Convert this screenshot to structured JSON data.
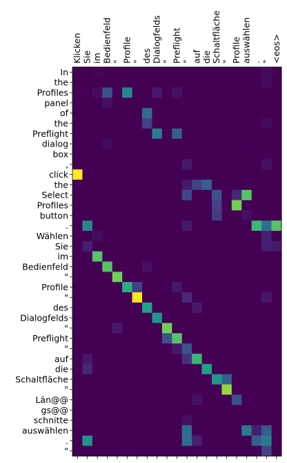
{
  "chart_data": {
    "type": "heatmap",
    "colormap": "viridis",
    "x_categories": [
      "Klicken",
      "Sie",
      "im",
      "Bedienfeld",
      "\"",
      "Profile",
      "\"",
      "des",
      "Dialogfelds",
      "\"",
      "Preflight",
      "\"",
      "auf",
      "die",
      "Schaltfläche",
      "\"",
      "Profile",
      "auswählen",
      ".",
      "\"",
      "<eos>"
    ],
    "y_categories": [
      "In",
      "the",
      "Profiles",
      "panel",
      "of",
      "the",
      "Preflight",
      "dialog",
      "box",
      ",",
      "click",
      "the",
      "Select",
      "Profiles",
      "button",
      ".",
      "Wählen",
      "Sie",
      "im",
      "Bedienfeld",
      "\"",
      "Profile",
      "\"",
      "des",
      "Dialogfelds",
      "\"",
      "Preflight",
      "\"",
      "auf",
      "die",
      "Schaltfläche",
      "\"",
      "Län@@",
      "gs@@",
      "schnitte",
      "auswählen",
      ".",
      "\""
    ],
    "values": [
      [
        0.02,
        0.02,
        0.03,
        0.02,
        0.02,
        0.02,
        0.02,
        0.02,
        0.02,
        0.02,
        0.02,
        0.02,
        0.02,
        0.02,
        0.02,
        0.02,
        0.02,
        0.02,
        0.02,
        0.04,
        0.02
      ],
      [
        0.02,
        0.02,
        0.02,
        0.02,
        0.02,
        0.02,
        0.02,
        0.02,
        0.02,
        0.02,
        0.02,
        0.02,
        0.02,
        0.02,
        0.02,
        0.02,
        0.02,
        0.02,
        0.02,
        0.04,
        0.02
      ],
      [
        0.02,
        0.02,
        0.05,
        0.25,
        0.02,
        0.45,
        0.02,
        0.02,
        0.08,
        0.02,
        0.06,
        0.02,
        0.02,
        0.02,
        0.02,
        0.02,
        0.02,
        0.02,
        0.02,
        0.02,
        0.02
      ],
      [
        0.02,
        0.02,
        0.02,
        0.06,
        0.02,
        0.02,
        0.02,
        0.02,
        0.02,
        0.02,
        0.02,
        0.02,
        0.02,
        0.02,
        0.02,
        0.02,
        0.02,
        0.02,
        0.02,
        0.02,
        0.02
      ],
      [
        0.02,
        0.02,
        0.02,
        0.02,
        0.02,
        0.02,
        0.02,
        0.35,
        0.02,
        0.02,
        0.02,
        0.02,
        0.02,
        0.02,
        0.02,
        0.02,
        0.02,
        0.02,
        0.02,
        0.02,
        0.02
      ],
      [
        0.02,
        0.02,
        0.02,
        0.02,
        0.02,
        0.02,
        0.02,
        0.2,
        0.02,
        0.02,
        0.02,
        0.02,
        0.02,
        0.02,
        0.02,
        0.02,
        0.02,
        0.02,
        0.02,
        0.04,
        0.02
      ],
      [
        0.02,
        0.02,
        0.02,
        0.02,
        0.02,
        0.02,
        0.02,
        0.02,
        0.4,
        0.02,
        0.3,
        0.02,
        0.02,
        0.02,
        0.02,
        0.02,
        0.02,
        0.02,
        0.02,
        0.02,
        0.02
      ],
      [
        0.02,
        0.02,
        0.02,
        0.05,
        0.02,
        0.02,
        0.02,
        0.02,
        0.02,
        0.02,
        0.02,
        0.02,
        0.02,
        0.02,
        0.02,
        0.02,
        0.02,
        0.02,
        0.02,
        0.02,
        0.02
      ],
      [
        0.02,
        0.02,
        0.02,
        0.02,
        0.02,
        0.02,
        0.02,
        0.02,
        0.02,
        0.02,
        0.02,
        0.02,
        0.02,
        0.02,
        0.02,
        0.02,
        0.02,
        0.02,
        0.02,
        0.02,
        0.02
      ],
      [
        0.02,
        0.02,
        0.02,
        0.02,
        0.02,
        0.02,
        0.02,
        0.02,
        0.02,
        0.02,
        0.02,
        0.08,
        0.02,
        0.02,
        0.02,
        0.02,
        0.02,
        0.02,
        0.02,
        0.06,
        0.02
      ],
      [
        0.95,
        0.02,
        0.02,
        0.02,
        0.02,
        0.02,
        0.02,
        0.02,
        0.02,
        0.02,
        0.02,
        0.02,
        0.02,
        0.02,
        0.02,
        0.02,
        0.02,
        0.02,
        0.02,
        0.02,
        0.02
      ],
      [
        0.02,
        0.02,
        0.02,
        0.02,
        0.02,
        0.02,
        0.02,
        0.02,
        0.02,
        0.02,
        0.02,
        0.08,
        0.2,
        0.3,
        0.02,
        0.02,
        0.02,
        0.02,
        0.02,
        0.02,
        0.02
      ],
      [
        0.02,
        0.02,
        0.02,
        0.02,
        0.02,
        0.02,
        0.02,
        0.02,
        0.02,
        0.02,
        0.02,
        0.22,
        0.02,
        0.02,
        0.25,
        0.02,
        0.12,
        0.7,
        0.02,
        0.02,
        0.02
      ],
      [
        0.02,
        0.02,
        0.02,
        0.02,
        0.02,
        0.02,
        0.02,
        0.02,
        0.02,
        0.02,
        0.02,
        0.02,
        0.02,
        0.02,
        0.2,
        0.02,
        0.75,
        0.02,
        0.02,
        0.02,
        0.02
      ],
      [
        0.02,
        0.02,
        0.02,
        0.02,
        0.02,
        0.02,
        0.02,
        0.02,
        0.02,
        0.02,
        0.02,
        0.02,
        0.02,
        0.02,
        0.18,
        0.02,
        0.02,
        0.06,
        0.02,
        0.02,
        0.02
      ],
      [
        0.02,
        0.45,
        0.02,
        0.02,
        0.02,
        0.02,
        0.02,
        0.02,
        0.02,
        0.02,
        0.02,
        0.08,
        0.02,
        0.02,
        0.02,
        0.02,
        0.02,
        0.02,
        0.65,
        0.35,
        0.7
      ],
      [
        0.02,
        0.02,
        0.05,
        0.02,
        0.02,
        0.02,
        0.02,
        0.02,
        0.02,
        0.02,
        0.02,
        0.02,
        0.02,
        0.02,
        0.02,
        0.02,
        0.02,
        0.02,
        0.02,
        0.1,
        0.02
      ],
      [
        0.02,
        0.1,
        0.02,
        0.02,
        0.02,
        0.02,
        0.02,
        0.02,
        0.02,
        0.02,
        0.02,
        0.02,
        0.02,
        0.02,
        0.02,
        0.02,
        0.02,
        0.02,
        0.02,
        0.1,
        0.08
      ],
      [
        0.02,
        0.02,
        0.7,
        0.02,
        0.02,
        0.02,
        0.02,
        0.02,
        0.02,
        0.02,
        0.02,
        0.02,
        0.02,
        0.02,
        0.02,
        0.02,
        0.02,
        0.02,
        0.02,
        0.02,
        0.02
      ],
      [
        0.02,
        0.02,
        0.02,
        0.7,
        0.02,
        0.02,
        0.02,
        0.06,
        0.02,
        0.02,
        0.02,
        0.02,
        0.02,
        0.02,
        0.02,
        0.02,
        0.02,
        0.02,
        0.02,
        0.02,
        0.02
      ],
      [
        0.02,
        0.02,
        0.02,
        0.02,
        0.75,
        0.02,
        0.02,
        0.02,
        0.02,
        0.02,
        0.02,
        0.02,
        0.02,
        0.02,
        0.02,
        0.02,
        0.02,
        0.02,
        0.02,
        0.02,
        0.02
      ],
      [
        0.02,
        0.02,
        0.02,
        0.02,
        0.02,
        0.6,
        0.2,
        0.02,
        0.02,
        0.02,
        0.08,
        0.02,
        0.02,
        0.02,
        0.02,
        0.02,
        0.02,
        0.02,
        0.02,
        0.02,
        0.02
      ],
      [
        0.02,
        0.02,
        0.02,
        0.02,
        0.02,
        0.02,
        0.95,
        0.02,
        0.02,
        0.02,
        0.02,
        0.12,
        0.02,
        0.02,
        0.02,
        0.02,
        0.02,
        0.02,
        0.02,
        0.08,
        0.02
      ],
      [
        0.02,
        0.02,
        0.02,
        0.02,
        0.02,
        0.02,
        0.02,
        0.55,
        0.02,
        0.02,
        0.02,
        0.02,
        0.08,
        0.02,
        0.02,
        0.02,
        0.02,
        0.02,
        0.02,
        0.02,
        0.02
      ],
      [
        0.02,
        0.02,
        0.02,
        0.02,
        0.02,
        0.02,
        0.02,
        0.02,
        0.5,
        0.02,
        0.02,
        0.02,
        0.02,
        0.02,
        0.02,
        0.02,
        0.02,
        0.02,
        0.02,
        0.02,
        0.02
      ],
      [
        0.02,
        0.02,
        0.02,
        0.02,
        0.08,
        0.02,
        0.02,
        0.02,
        0.02,
        0.75,
        0.02,
        0.02,
        0.02,
        0.02,
        0.02,
        0.02,
        0.02,
        0.02,
        0.02,
        0.02,
        0.02
      ],
      [
        0.02,
        0.02,
        0.02,
        0.02,
        0.02,
        0.02,
        0.02,
        0.02,
        0.02,
        0.25,
        0.7,
        0.02,
        0.02,
        0.02,
        0.02,
        0.02,
        0.02,
        0.02,
        0.02,
        0.02,
        0.02
      ],
      [
        0.02,
        0.02,
        0.02,
        0.02,
        0.02,
        0.02,
        0.02,
        0.02,
        0.02,
        0.02,
        0.08,
        0.25,
        0.02,
        0.02,
        0.02,
        0.02,
        0.02,
        0.02,
        0.02,
        0.02,
        0.02
      ],
      [
        0.02,
        0.08,
        0.02,
        0.02,
        0.02,
        0.02,
        0.02,
        0.02,
        0.02,
        0.02,
        0.02,
        0.15,
        0.65,
        0.02,
        0.02,
        0.02,
        0.02,
        0.02,
        0.02,
        0.02,
        0.02
      ],
      [
        0.02,
        0.12,
        0.02,
        0.02,
        0.02,
        0.02,
        0.02,
        0.02,
        0.02,
        0.02,
        0.02,
        0.02,
        0.02,
        0.55,
        0.02,
        0.02,
        0.02,
        0.02,
        0.02,
        0.02,
        0.02
      ],
      [
        0.02,
        0.02,
        0.02,
        0.02,
        0.02,
        0.02,
        0.02,
        0.02,
        0.02,
        0.02,
        0.02,
        0.02,
        0.02,
        0.02,
        0.5,
        0.3,
        0.02,
        0.02,
        0.02,
        0.02,
        0.02
      ],
      [
        0.02,
        0.02,
        0.02,
        0.02,
        0.02,
        0.02,
        0.02,
        0.02,
        0.02,
        0.02,
        0.02,
        0.02,
        0.02,
        0.02,
        0.02,
        0.8,
        0.02,
        0.02,
        0.02,
        0.02,
        0.02
      ],
      [
        0.02,
        0.02,
        0.02,
        0.02,
        0.02,
        0.02,
        0.02,
        0.02,
        0.02,
        0.02,
        0.02,
        0.02,
        0.06,
        0.02,
        0.02,
        0.02,
        0.25,
        0.02,
        0.02,
        0.02,
        0.02
      ],
      [
        0.02,
        0.02,
        0.02,
        0.02,
        0.02,
        0.02,
        0.02,
        0.02,
        0.02,
        0.02,
        0.02,
        0.02,
        0.02,
        0.02,
        0.02,
        0.02,
        0.02,
        0.02,
        0.02,
        0.02,
        0.02
      ],
      [
        0.02,
        0.02,
        0.02,
        0.02,
        0.02,
        0.02,
        0.02,
        0.02,
        0.02,
        0.02,
        0.02,
        0.06,
        0.02,
        0.02,
        0.02,
        0.02,
        0.02,
        0.02,
        0.02,
        0.02,
        0.02
      ],
      [
        0.02,
        0.02,
        0.02,
        0.02,
        0.02,
        0.02,
        0.02,
        0.02,
        0.02,
        0.02,
        0.02,
        0.35,
        0.02,
        0.02,
        0.02,
        0.02,
        0.02,
        0.4,
        0.1,
        0.3,
        0.02
      ],
      [
        0.02,
        0.5,
        0.02,
        0.02,
        0.02,
        0.02,
        0.02,
        0.02,
        0.02,
        0.02,
        0.02,
        0.35,
        0.1,
        0.02,
        0.02,
        0.02,
        0.02,
        0.02,
        0.3,
        0.4,
        0.02
      ],
      [
        0.02,
        0.02,
        0.02,
        0.02,
        0.02,
        0.02,
        0.02,
        0.02,
        0.02,
        0.02,
        0.02,
        0.02,
        0.02,
        0.02,
        0.02,
        0.02,
        0.02,
        0.02,
        0.02,
        0.2,
        0.02
      ]
    ]
  }
}
